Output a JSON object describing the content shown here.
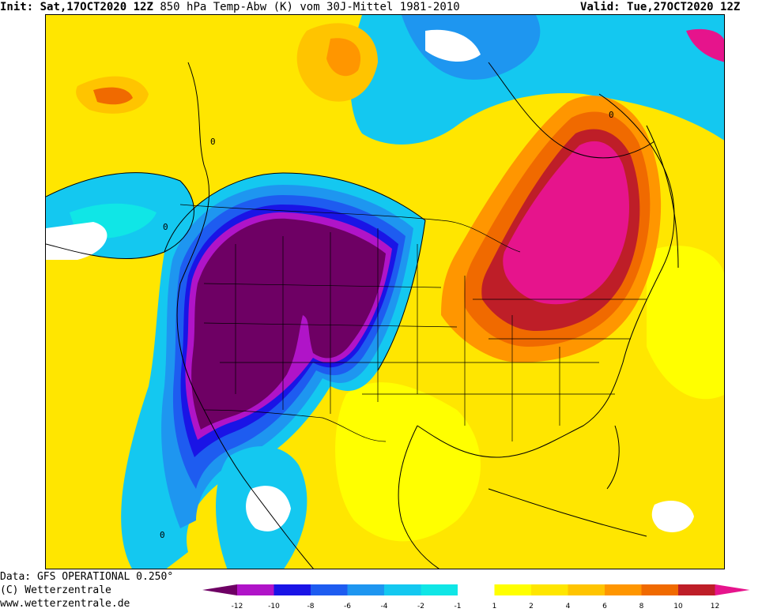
{
  "header": {
    "init_label": "Init:",
    "init_time": "Sat,17OCT2020 12Z",
    "parameter": "850 hPa Temp-Abw (K) vom 30J-Mittel 1981-2010",
    "valid_label": "Valid:",
    "valid_time": "Tue,27OCT2020 12Z"
  },
  "footer": {
    "data_source": "Data: GFS OPERATIONAL 0.250°",
    "copyright": "(C) Wetterzentrale",
    "website": "www.wetterzentrale.de"
  },
  "map": {
    "contour_label": "0",
    "region": "North America"
  },
  "colorbar": {
    "ticks": [
      "-12",
      "-10",
      "-8",
      "-6",
      "-4",
      "-2",
      "-1",
      "1",
      "2",
      "4",
      "6",
      "8",
      "10",
      "12"
    ],
    "colors": [
      "#b014c8",
      "#1a14e6",
      "#1e5cf0",
      "#1e96f0",
      "#14c8f0",
      "#10e6e6",
      "#ffffff",
      "#ffff00",
      "#ffe600",
      "#ffc400",
      "#ff9600",
      "#f06a00",
      "#be1e28"
    ],
    "min_color": "#6e0064",
    "max_color": "#e6148c"
  }
}
